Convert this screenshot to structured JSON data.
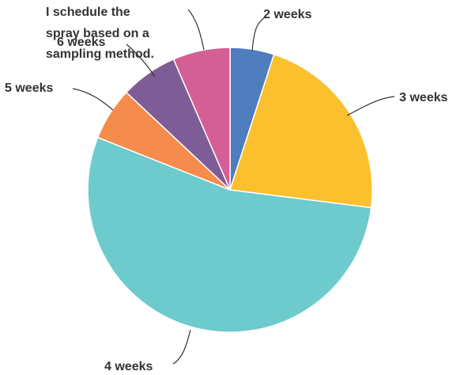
{
  "chart_data": {
    "type": "pie",
    "slices": [
      {
        "label": "2 weeks",
        "value": 5.0,
        "color": "#4F7DBD"
      },
      {
        "label": "3 weeks",
        "value": 22.0,
        "color": "#FBC02D"
      },
      {
        "label": "4 weeks",
        "value": 54.0,
        "color": "#6DCACD"
      },
      {
        "label": "5 weeks",
        "value": 6.0,
        "color": "#F58B4C"
      },
      {
        "label": "6 weeks",
        "value": 6.5,
        "color": "#7E5D96"
      },
      {
        "label": "I schedule the spray based on a sampling method.",
        "value": 6.5,
        "color": "#D35F95"
      }
    ],
    "start": "12 o'clock",
    "direction": "clockwise",
    "legend": "none"
  }
}
